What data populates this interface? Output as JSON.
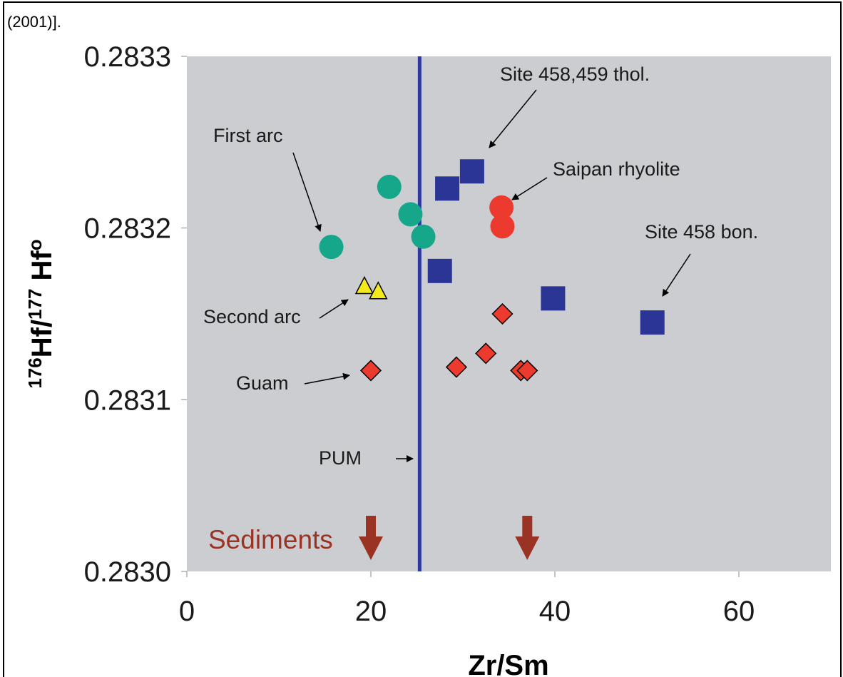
{
  "caption": "(2001)].",
  "chart_data": {
    "type": "scatter",
    "xlabel": "Zr/Sm",
    "ylabel": {
      "sup1": "176",
      "base1": "Hf/",
      "sup2": "177",
      "base2": " Hf",
      "sup3": "o"
    },
    "xlim": [
      0,
      70
    ],
    "ylim": [
      0.283,
      0.2833
    ],
    "xticks": [
      0,
      20,
      40,
      60
    ],
    "xtick_labels": [
      "0",
      "20",
      "40",
      "60"
    ],
    "yticks": [
      0.283,
      0.2831,
      0.2832,
      0.2833
    ],
    "ytick_labels": [
      "0.2830",
      "0.2831",
      "0.2832",
      "0.2833"
    ],
    "plot_background": "#cbcdd0",
    "series": [
      {
        "marker": "circle",
        "color": "#16a68a",
        "points": [
          [
            15.7,
            0.283189
          ],
          [
            22.0,
            0.283224
          ],
          [
            24.3,
            0.283208
          ],
          [
            25.7,
            0.283195
          ]
        ]
      },
      {
        "marker": "square",
        "color": "#2b3596",
        "points": [
          [
            28.3,
            0.283223
          ],
          [
            31.0,
            0.283233
          ],
          [
            27.5,
            0.283175
          ],
          [
            39.8,
            0.283159
          ],
          [
            50.6,
            0.283145
          ]
        ]
      },
      {
        "marker": "circle",
        "color": "#ec3b2e",
        "points": [
          [
            34.2,
            0.283212
          ],
          [
            34.3,
            0.283201
          ]
        ]
      },
      {
        "marker": "triangle",
        "color": "#f2ea1c",
        "points": [
          [
            19.3,
            0.283166
          ],
          [
            20.8,
            0.283163
          ]
        ]
      },
      {
        "marker": "diamond",
        "color": "#ec3b2e",
        "points": [
          [
            20.0,
            0.283117
          ],
          [
            29.3,
            0.283119
          ],
          [
            32.5,
            0.283127
          ],
          [
            34.3,
            0.28315
          ],
          [
            36.3,
            0.283117
          ],
          [
            37.0,
            0.283117
          ]
        ]
      }
    ],
    "reference_line": {
      "x": 25.3,
      "label": "PUM",
      "color": "#2f38a2"
    },
    "annotations": [
      "First arc",
      "Site 458,459 thol.",
      "Saipan rhyolite",
      "Site 458 bon.",
      "Second arc",
      "Guam"
    ],
    "sediments": {
      "label": "Sediments",
      "arrow_x": [
        20.0,
        37.0
      ],
      "color": "#9b3325"
    }
  }
}
